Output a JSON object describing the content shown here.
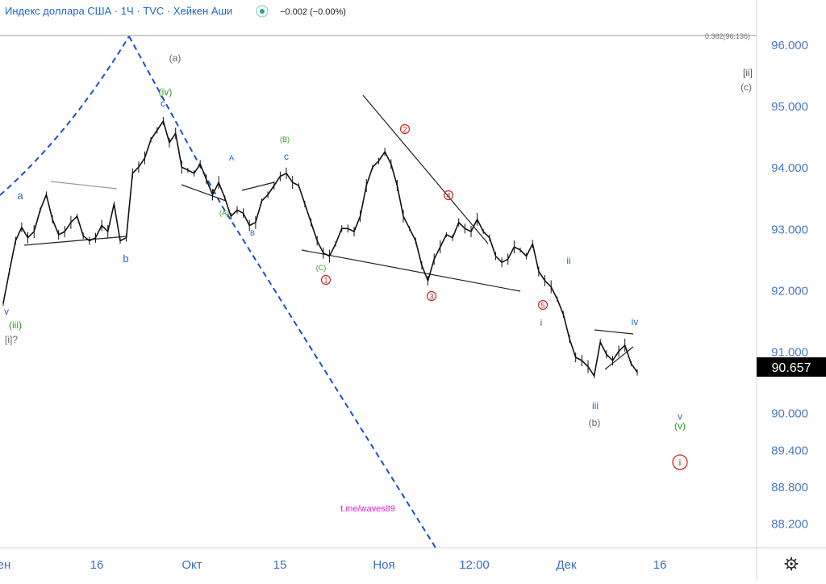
{
  "header": {
    "title": "Индекс доллара США · 1Ч · TVC · Хейкен Аши",
    "change": "−0.002 (−0.00%)",
    "status_icon": "eye-icon"
  },
  "price_axis": {
    "ticks": [
      "96.000",
      "95.000",
      "94.000",
      "93.000",
      "92.000",
      "91.000",
      "90.000",
      "89.400",
      "88.800",
      "88.200"
    ],
    "current_price": "90.657",
    "fib_label": "0.382(96.136)"
  },
  "time_axis": {
    "ticks": [
      "ен",
      "16",
      "Окт",
      "15",
      "Ноя",
      "12:00",
      "Дек",
      "16"
    ]
  },
  "settings_icon": "gear-icon",
  "watermark": "t.me/waves89",
  "colors": {
    "navy_blue": "#1a4fd6",
    "label_blue": "#1e66c9",
    "green": "#2e9b1e",
    "red": "#c62828",
    "gray": "#666666",
    "magenta": "#e020e0",
    "axis_text": "#4a78c8",
    "candles": "#111111"
  },
  "chart_data": {
    "type": "line",
    "title": "Индекс доллара США · 1Ч · TVC · Хейкен Аши",
    "xlabel": "",
    "ylabel": "",
    "ylim": [
      87.9,
      96.6
    ],
    "x_ticks": [
      "ен",
      "16",
      "Окт",
      "15",
      "Ноя",
      "12:00",
      "Дек",
      "16"
    ],
    "y_ticks": [
      96.0,
      95.0,
      94.0,
      93.0,
      92.0,
      91.0,
      90.0,
      89.4,
      88.8,
      88.2
    ],
    "series": [
      {
        "values": [
          91.78,
          92.3,
          92.8,
          93.02,
          92.85,
          92.95,
          93.3,
          93.55,
          93.15,
          92.9,
          92.95,
          93.1,
          93.2,
          92.88,
          92.8,
          92.85,
          93.05,
          92.95,
          93.4,
          92.8,
          92.85,
          93.9,
          94.0,
          94.15,
          94.45,
          94.6,
          94.75,
          94.4,
          94.55,
          94.0,
          93.95,
          93.9,
          94.05,
          93.8,
          93.55,
          93.75,
          93.5,
          93.2,
          93.3,
          93.25,
          93.05,
          93.1,
          93.45,
          93.55,
          93.7,
          93.85,
          93.9,
          93.75,
          93.7,
          93.4,
          93.1,
          92.8,
          92.6,
          92.55,
          92.75,
          93.0,
          93.0,
          92.95,
          93.2,
          93.7,
          94.0,
          94.1,
          94.25,
          94.05,
          93.7,
          93.2,
          93.0,
          92.8,
          92.4,
          92.15,
          92.5,
          92.7,
          92.9,
          92.85,
          93.1,
          93.0,
          92.95,
          93.15,
          92.95,
          92.85,
          92.55,
          92.45,
          92.5,
          92.7,
          92.65,
          92.55,
          92.75,
          92.3,
          92.15,
          92.05,
          91.85,
          91.6,
          91.2,
          90.9,
          90.85,
          90.75,
          90.6,
          91.15,
          90.95,
          90.85,
          91.0,
          91.1,
          90.8,
          90.657
        ]
      }
    ],
    "trendlines": [
      {
        "name": "flat-top",
        "points": [
          [
            63,
            225
          ],
          [
            145,
            234
          ]
        ]
      },
      {
        "name": "flat-bottom",
        "points": [
          [
            30,
            304
          ],
          [
            157,
            293
          ]
        ]
      },
      {
        "name": "wedge-a",
        "points": [
          [
            225,
            229
          ],
          [
            280,
            249
          ]
        ]
      },
      {
        "name": "wedge-b",
        "points": [
          [
            300,
            236
          ],
          [
            340,
            226
          ]
        ]
      },
      {
        "name": "channel-upper",
        "points": [
          [
            450,
            118
          ],
          [
            605,
            302
          ]
        ]
      },
      {
        "name": "channel-lower",
        "points": [
          [
            374,
            310
          ],
          [
            645,
            361
          ]
        ]
      },
      {
        "name": "triangle-top",
        "points": [
          [
            737,
            409
          ],
          [
            785,
            414
          ]
        ]
      },
      {
        "name": "triangle-bottom",
        "points": [
          [
            750,
            458
          ],
          [
            785,
            430
          ]
        ]
      }
    ],
    "wave_labels": [
      {
        "text": "(a)",
        "color": "gray"
      },
      {
        "text": "(iv)",
        "color": "green"
      },
      {
        "text": "c",
        "color": "blue"
      },
      {
        "text": "a",
        "color": "blue"
      },
      {
        "text": "b",
        "color": "blue"
      },
      {
        "text": "v",
        "color": "blue"
      },
      {
        "text": "(iii)",
        "color": "green"
      },
      {
        "text": "[i]?",
        "color": "gray"
      },
      {
        "text": "A",
        "color": "blue"
      },
      {
        "text": "(A)",
        "color": "green"
      },
      {
        "text": "B",
        "color": "blue"
      },
      {
        "text": "(B)",
        "color": "green"
      },
      {
        "text": "c",
        "color": "blue"
      },
      {
        "text": "(C)",
        "color": "green"
      },
      {
        "text": "1",
        "color": "red"
      },
      {
        "text": "2",
        "color": "red"
      },
      {
        "text": "3",
        "color": "red"
      },
      {
        "text": "4",
        "color": "red"
      },
      {
        "text": "5",
        "color": "red"
      },
      {
        "text": "ii",
        "color": "blue"
      },
      {
        "text": "i",
        "color": "blue"
      },
      {
        "text": "iii",
        "color": "blue"
      },
      {
        "text": "(b)",
        "color": "gray"
      },
      {
        "text": "iv",
        "color": "blue"
      },
      {
        "text": "v",
        "color": "blue"
      },
      {
        "text": "(v)",
        "color": "green"
      },
      {
        "text": "i",
        "color": "red"
      },
      {
        "text": "[ii]",
        "color": "gray"
      },
      {
        "text": "(c)",
        "color": "gray"
      }
    ]
  }
}
